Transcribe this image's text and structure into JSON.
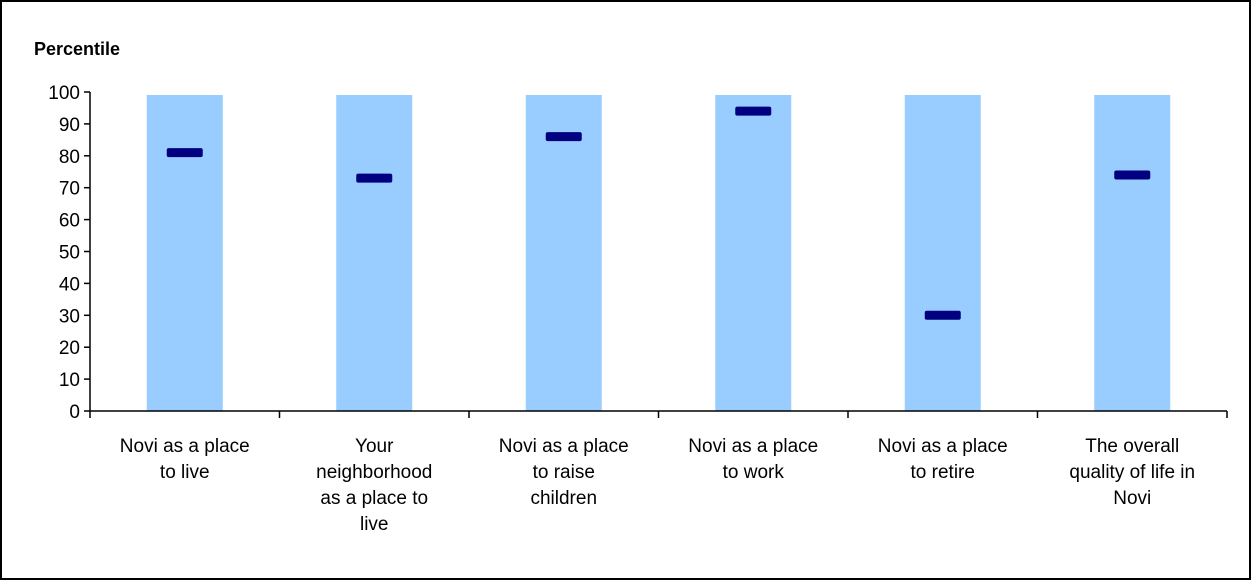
{
  "chart_data": {
    "type": "bar",
    "title": "",
    "ylabel": "Percentile",
    "xlabel": "",
    "ylim": [
      0,
      100
    ],
    "yticks": [
      0,
      10,
      20,
      30,
      40,
      50,
      60,
      70,
      80,
      90,
      100
    ],
    "grid": false,
    "categories": [
      "Novi as a place to live",
      "Your neighborhood as a place to live",
      "Novi as a place to raise children",
      "Novi as a place to work",
      "Novi as a place to retire",
      "The overall quality of life in Novi"
    ],
    "category_lines": [
      [
        "Novi as a place",
        "to live"
      ],
      [
        "Your",
        "neighborhood",
        "as a place to",
        "live"
      ],
      [
        "Novi as a place",
        "to raise",
        "children"
      ],
      [
        "Novi as a place",
        "to work"
      ],
      [
        "Novi as a place",
        "to retire"
      ],
      [
        "The overall",
        "quality of life in",
        "Novi"
      ]
    ],
    "series": [
      {
        "values": [
          100,
          100,
          100,
          100,
          100,
          100
        ]
      },
      {
        "values": [
          81,
          73,
          86,
          94,
          30,
          74
        ]
      }
    ],
    "colors": {
      "bar": "#99ccff",
      "marker": "#000080",
      "axis": "#000000"
    }
  }
}
